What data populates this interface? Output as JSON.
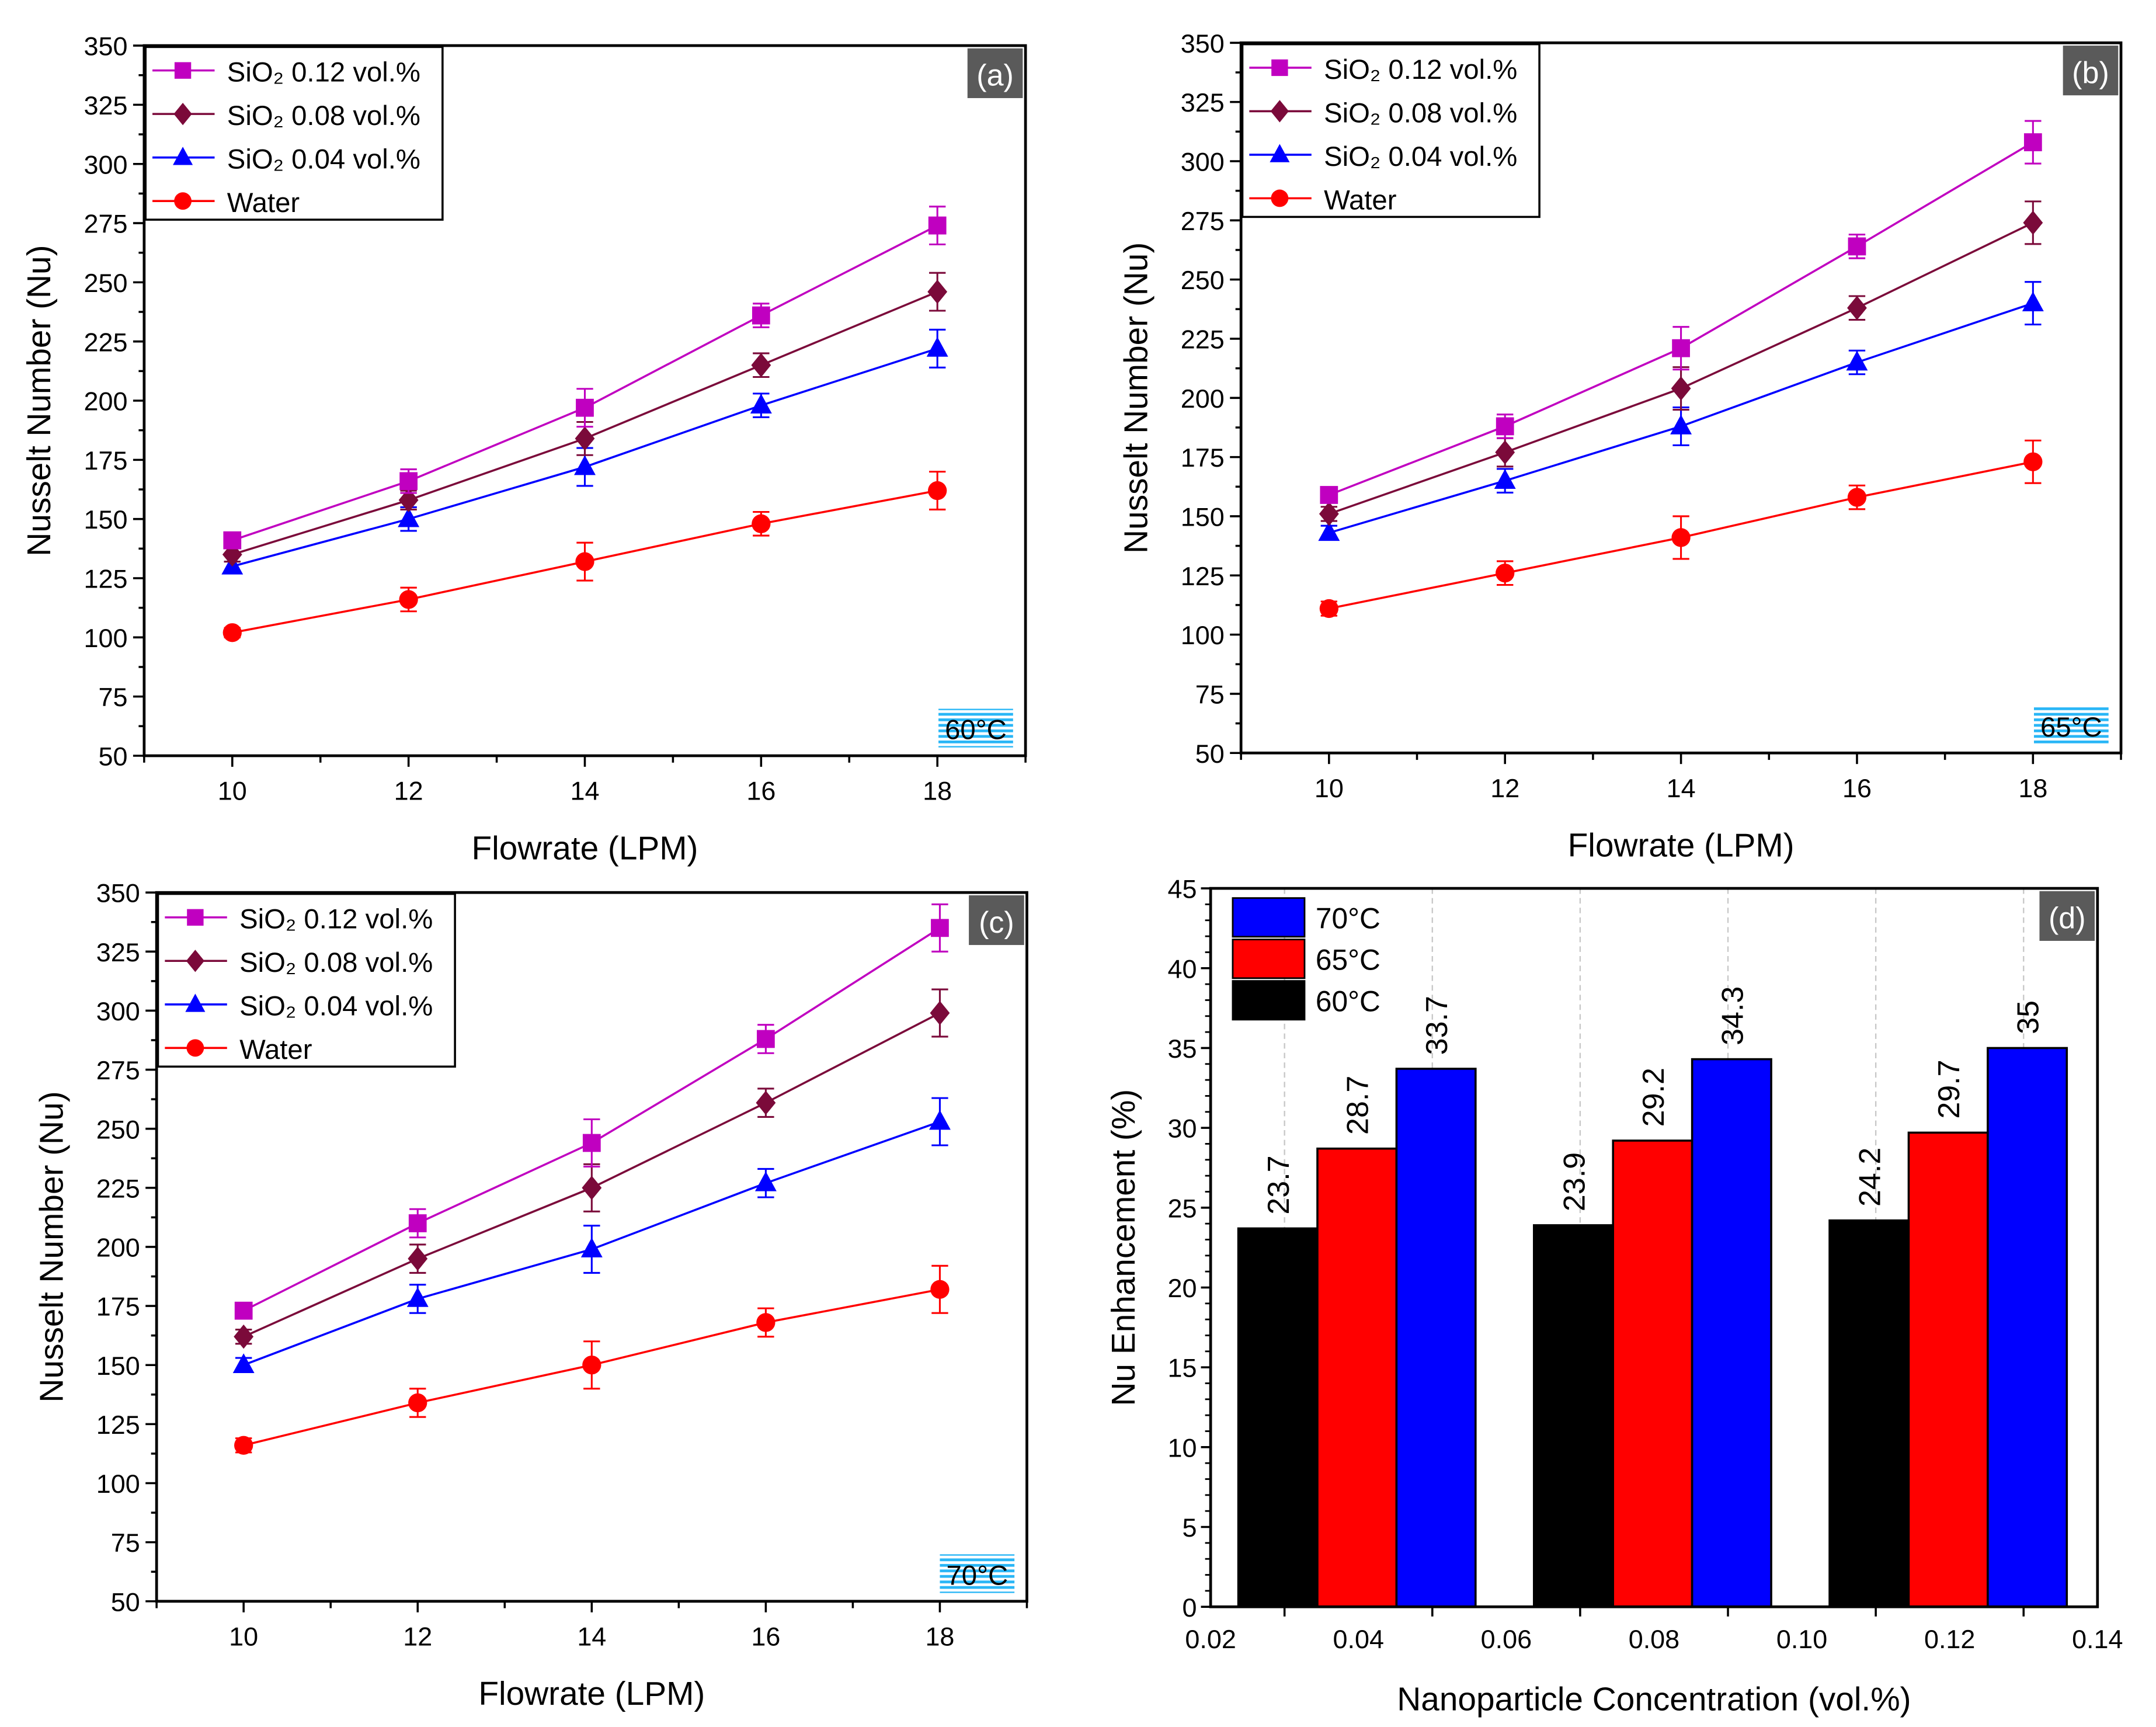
{
  "chart_data": [
    {
      "type": "line",
      "panel_label": "(a)",
      "temperature_label": "60°C",
      "xlabel": "Flowrate (LPM)",
      "ylabel": "Nusselt Number (Nu)",
      "xlim": [
        9,
        19
      ],
      "ylim": [
        50,
        350
      ],
      "x_ticks": [
        10,
        12,
        14,
        16,
        18
      ],
      "y_ticks": [
        50,
        75,
        100,
        125,
        150,
        175,
        200,
        225,
        250,
        275,
        300,
        325,
        350
      ],
      "legend_position": "top-left",
      "x": [
        10,
        12,
        14,
        16,
        18
      ],
      "series": [
        {
          "name": "SiO₂ 0.12 vol.%",
          "color": "#c000c0",
          "marker": "square",
          "values": [
            141,
            166,
            197,
            236,
            274
          ],
          "error": [
            2,
            5,
            8,
            5,
            8
          ]
        },
        {
          "name": "SiO₂ 0.08 vol.%",
          "color": "#7b0a3a",
          "marker": "diamond",
          "values": [
            135,
            158,
            184,
            215,
            246
          ],
          "error": [
            3,
            4,
            7,
            5,
            8
          ]
        },
        {
          "name": "SiO₂ 0.04 vol.%",
          "color": "#0000ff",
          "marker": "triangle",
          "values": [
            130,
            150,
            172,
            198,
            222
          ],
          "error": [
            2,
            5,
            8,
            5,
            8
          ]
        },
        {
          "name": "Water",
          "color": "#ff0000",
          "marker": "circle",
          "values": [
            102,
            116,
            132,
            148,
            162
          ],
          "error": [
            2,
            5,
            8,
            5,
            8
          ]
        }
      ]
    },
    {
      "type": "line",
      "panel_label": "(b)",
      "temperature_label": "65°C",
      "xlabel": "Flowrate (LPM)",
      "ylabel": "Nusselt Number (Nu)",
      "xlim": [
        9,
        19
      ],
      "ylim": [
        50,
        350
      ],
      "x_ticks": [
        10,
        12,
        14,
        16,
        18
      ],
      "y_ticks": [
        50,
        75,
        100,
        125,
        150,
        175,
        200,
        225,
        250,
        275,
        300,
        325,
        350
      ],
      "legend_position": "top-left",
      "x": [
        10,
        12,
        14,
        16,
        18
      ],
      "series": [
        {
          "name": "SiO₂ 0.12 vol.%",
          "color": "#c000c0",
          "marker": "square",
          "values": [
            159,
            188,
            221,
            264,
            308
          ],
          "error": [
            2,
            5,
            9,
            5,
            9
          ]
        },
        {
          "name": "SiO₂ 0.08 vol.%",
          "color": "#7b0a3a",
          "marker": "diamond",
          "values": [
            151,
            177,
            204,
            238,
            274
          ],
          "error": [
            3,
            6,
            9,
            5,
            9
          ]
        },
        {
          "name": "SiO₂ 0.04 vol.%",
          "color": "#0000ff",
          "marker": "triangle",
          "values": [
            143,
            165,
            188,
            215,
            240
          ],
          "error": [
            3,
            5,
            8,
            5,
            9
          ]
        },
        {
          "name": "Water",
          "color": "#ff0000",
          "marker": "circle",
          "values": [
            111,
            126,
            141,
            158,
            173
          ],
          "error": [
            3,
            5,
            9,
            5,
            9
          ]
        }
      ]
    },
    {
      "type": "line",
      "panel_label": "(c)",
      "temperature_label": "70°C",
      "xlabel": "Flowrate (LPM)",
      "ylabel": "Nusselt Number (Nu)",
      "xlim": [
        9,
        19
      ],
      "ylim": [
        50,
        350
      ],
      "x_ticks": [
        10,
        12,
        14,
        16,
        18
      ],
      "y_ticks": [
        50,
        75,
        100,
        125,
        150,
        175,
        200,
        225,
        250,
        275,
        300,
        325,
        350
      ],
      "legend_position": "top-left",
      "x": [
        10,
        12,
        14,
        16,
        18
      ],
      "series": [
        {
          "name": "SiO₂ 0.12 vol.%",
          "color": "#c000c0",
          "marker": "square",
          "values": [
            173,
            210,
            244,
            288,
            335
          ],
          "error": [
            3,
            6,
            10,
            6,
            10
          ]
        },
        {
          "name": "SiO₂ 0.08 vol.%",
          "color": "#7b0a3a",
          "marker": "diamond",
          "values": [
            162,
            195,
            225,
            261,
            299
          ],
          "error": [
            3,
            6,
            10,
            6,
            10
          ]
        },
        {
          "name": "SiO₂ 0.04 vol.%",
          "color": "#0000ff",
          "marker": "triangle",
          "values": [
            150,
            178,
            199,
            227,
            253
          ],
          "error": [
            3,
            6,
            10,
            6,
            10
          ]
        },
        {
          "name": "Water",
          "color": "#ff0000",
          "marker": "circle",
          "values": [
            116,
            134,
            150,
            168,
            182
          ],
          "error": [
            3,
            6,
            10,
            6,
            10
          ]
        }
      ]
    },
    {
      "type": "bar",
      "panel_label": "(d)",
      "xlabel": "Nanoparticle Concentration (vol.%)",
      "ylabel": "Nu Enhancement (%)",
      "xlim": [
        0.02,
        0.14
      ],
      "ylim": [
        0,
        45
      ],
      "x_ticks": [
        "0.02",
        "0.04",
        "0.06",
        "0.08",
        "0.10",
        "0.12",
        "0.14"
      ],
      "y_ticks": [
        0,
        5,
        10,
        15,
        20,
        25,
        30,
        35,
        40,
        45
      ],
      "legend_position": "top-left",
      "grid": "vertical dashed",
      "categories": [
        0.04,
        0.08,
        0.12
      ],
      "series": [
        {
          "name": "70°C",
          "color": "#0000ff",
          "values": [
            33.7,
            34.3,
            35
          ],
          "labels": [
            "33.7",
            "34.3",
            "35"
          ]
        },
        {
          "name": "65°C",
          "color": "#ff0000",
          "values": [
            28.7,
            29.2,
            29.7
          ],
          "labels": [
            "28.7",
            "29.2",
            "29.7"
          ]
        },
        {
          "name": "60°C",
          "color": "#000000",
          "values": [
            23.7,
            23.9,
            24.2
          ],
          "labels": [
            "23.7",
            "23.9",
            "24.2"
          ]
        }
      ]
    }
  ]
}
